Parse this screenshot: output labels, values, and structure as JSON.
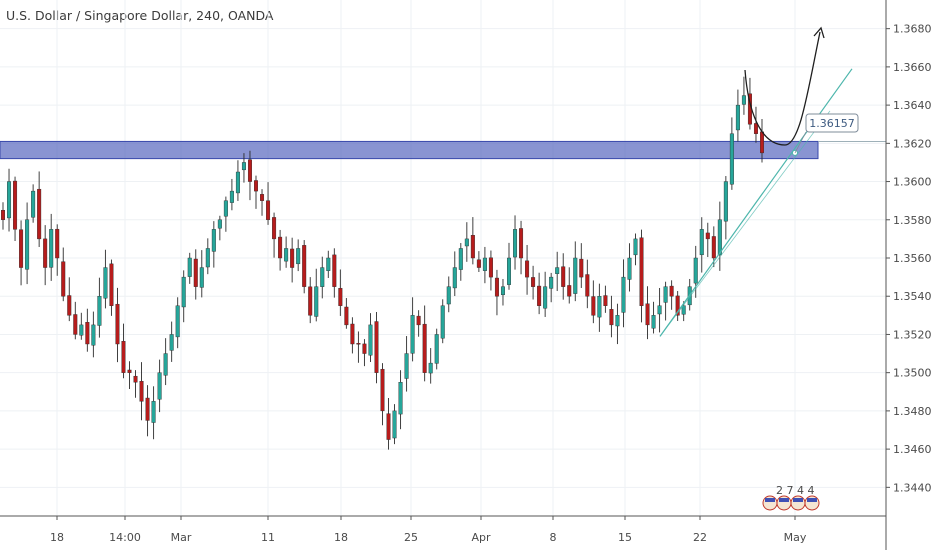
{
  "chart_data": {
    "type": "candlestick",
    "title": "U.S. Dollar / Singapore Dollar, 240, OANDA",
    "xlabel": "",
    "ylabel": "",
    "ylim": [
      1.3425,
      1.3695
    ],
    "y_ticks": [
      "1.36800",
      "1.36600",
      "1.36400",
      "1.36200",
      "1.36000",
      "1.35800",
      "1.35600",
      "1.35400",
      "1.35200",
      "1.35000",
      "1.34800",
      "1.34600",
      "1.34400"
    ],
    "x_ticks": [
      "18",
      "14:00",
      "Mar",
      "11",
      "18",
      "25",
      "Apr",
      "8",
      "15",
      "22",
      "May"
    ],
    "grid": true,
    "colors": {
      "up": "#26a69a",
      "down": "#b71c1c",
      "zone": "#5c6bc0",
      "trend": "#4db6ac"
    },
    "annotations": {
      "resistance_zone": {
        "top": 1.3621,
        "bottom": 1.3612
      },
      "price_label": "1.36157",
      "trendline": {
        "from": [
          1.3519
        ],
        "to": [
          1.3659
        ]
      }
    },
    "candles_closes": [
      1.358,
      1.36,
      1.3575,
      1.3555,
      1.358,
      1.3595,
      1.357,
      1.3555,
      1.3575,
      1.356,
      1.354,
      1.353,
      1.352,
      1.3525,
      1.3515,
      1.3525,
      1.354,
      1.3555,
      1.3535,
      1.3515,
      1.35,
      1.35,
      1.3495,
      1.3485,
      1.3475,
      1.3485,
      1.35,
      1.351,
      1.352,
      1.3535,
      1.355,
      1.356,
      1.3545,
      1.3555,
      1.3565,
      1.3575,
      1.358,
      1.359,
      1.3595,
      1.3605,
      1.361,
      1.36,
      1.3595,
      1.359,
      1.358,
      1.357,
      1.356,
      1.3565,
      1.3555,
      1.3565,
      1.3545,
      1.353,
      1.3545,
      1.3555,
      1.356,
      1.3545,
      1.3535,
      1.3525,
      1.3515,
      1.3515,
      1.351,
      1.3525,
      1.35,
      1.348,
      1.3465,
      1.348,
      1.3495,
      1.351,
      1.353,
      1.3525,
      1.35,
      1.3505,
      1.352,
      1.3535,
      1.3545,
      1.3555,
      1.3565,
      1.357,
      1.356,
      1.3555,
      1.356,
      1.355,
      1.354,
      1.3545,
      1.356,
      1.3575,
      1.356,
      1.355,
      1.3545,
      1.3535,
      1.3545,
      1.355,
      1.3555,
      1.3545,
      1.354,
      1.356,
      1.355,
      1.354,
      1.353,
      1.354,
      1.3535,
      1.3525,
      1.353,
      1.355,
      1.356,
      1.357,
      1.3535,
      1.3525,
      1.353,
      1.3535,
      1.3545,
      1.354,
      1.353,
      1.3535,
      1.3545,
      1.356,
      1.3575,
      1.357,
      1.356,
      1.358,
      1.36,
      1.3625,
      1.364,
      1.3645,
      1.363,
      1.3625,
      1.3615
    ]
  },
  "watermark": {
    "events_label": "2 7 4 4"
  }
}
